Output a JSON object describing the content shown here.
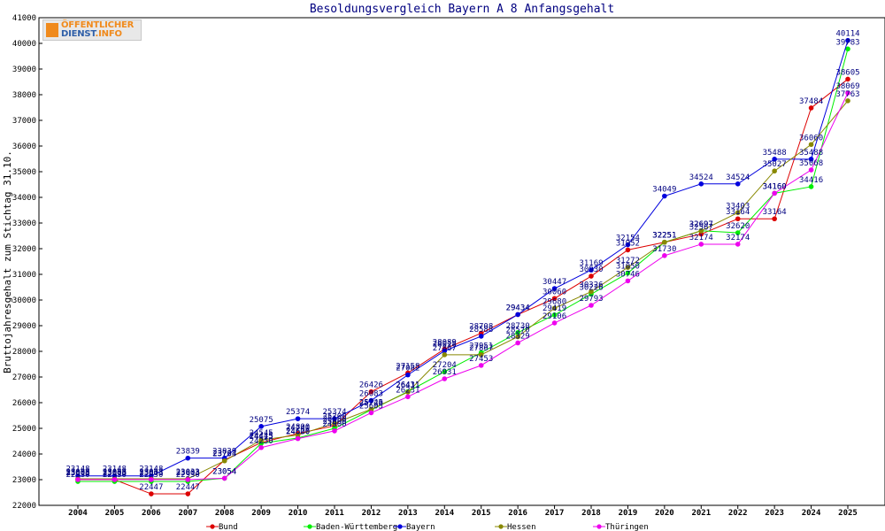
{
  "logo": {
    "line1": "ÖFFENTLICHER",
    "line2a": "DIENST",
    "line2b": ".INFO"
  },
  "chart_data": {
    "type": "line",
    "title": "Besoldungsvergleich Bayern A 8 Anfangsgehalt",
    "xlabel": "",
    "ylabel": "Bruttojahresgehalt zum Stichtag 31.10.",
    "x": [
      2004,
      2005,
      2006,
      2007,
      2008,
      2009,
      2010,
      2011,
      2012,
      2013,
      2014,
      2015,
      2016,
      2017,
      2018,
      2019,
      2020,
      2021,
      2022,
      2023,
      2024,
      2025
    ],
    "ylim": [
      22000,
      41000
    ],
    "yticks": [
      22000,
      23000,
      24000,
      25000,
      26000,
      27000,
      28000,
      29000,
      30000,
      31000,
      32000,
      33000,
      34000,
      35000,
      36000,
      37000,
      38000,
      39000,
      40000,
      41000
    ],
    "grid": false,
    "legend": "bottom",
    "series": [
      {
        "name": "Bund",
        "color": "#dd0000",
        "values": [
          23000,
          23000,
          22447,
          22447,
          23764,
          24445,
          24800,
          25100,
          26426,
          27158,
          28089,
          28708,
          29434,
          30060,
          30930,
          31952,
          32251,
          32567,
          33164,
          33164,
          37484,
          38605
        ]
      },
      {
        "name": "Baden-Württemberg",
        "color": "#00ee00",
        "values": [
          22930,
          22930,
          22930,
          22930,
          23054,
          24415,
          24626,
          25000,
          25720,
          26431,
          27204,
          27951,
          28730,
          29419,
          30226,
          31050,
          32251,
          32697,
          32620,
          34160,
          34416,
          39783
        ]
      },
      {
        "name": "Bayern",
        "color": "#0000dd",
        "values": [
          23148,
          23148,
          23148,
          23839,
          23839,
          25075,
          25374,
          25374,
          26083,
          27082,
          28018,
          28588,
          29434,
          30447,
          31169,
          32154,
          34049,
          34524,
          34524,
          35488,
          35488,
          40114
        ]
      },
      {
        "name": "Hessen",
        "color": "#888800",
        "values": [
          23033,
          23033,
          23033,
          23033,
          23733,
          24545,
          24740,
          25200,
          25745,
          26411,
          27867,
          27867,
          28570,
          29680,
          30326,
          31272,
          32251,
          32697,
          33403,
          35027,
          36060,
          37763
        ]
      },
      {
        "name": "Thüringen",
        "color": "#ee00ee",
        "values": [
          23003,
          23003,
          23003,
          23003,
          23054,
          24250,
          24600,
          24900,
          25605,
          26231,
          26931,
          27453,
          28329,
          29106,
          29793,
          30746,
          31730,
          32174,
          32174,
          34160,
          35068,
          38069
        ]
      }
    ]
  }
}
